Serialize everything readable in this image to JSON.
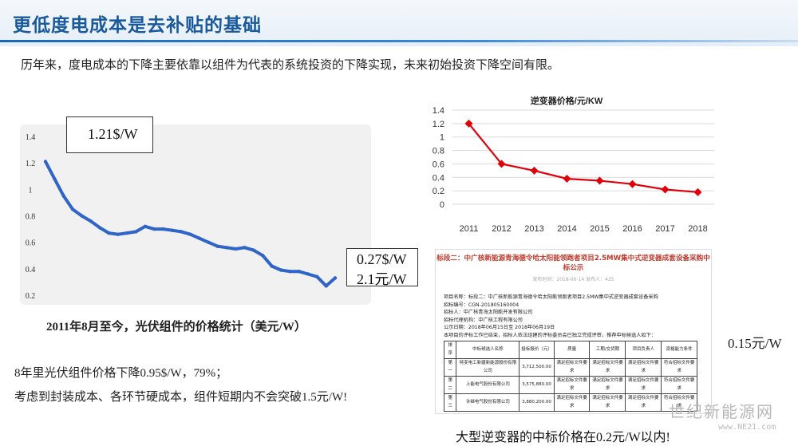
{
  "header": {
    "title": "更低度电成本是去补贴的基础"
  },
  "intro": "历年来，度电成本的下降主要依靠以组件为代表的系统投资的下降实现，未来初始投资下降空间有限。",
  "module_chart": {
    "callout_top": "1.21$/W",
    "callout_bottom_1": "0.27$/W",
    "callout_bottom_2": "2.1元/W",
    "caption": "2011年8月至今，光伏组件的价格统计（美元/W）",
    "y_ticks": [
      "1.4",
      "1.2",
      "1",
      "0.8",
      "0.6",
      "0.4",
      "0.2"
    ]
  },
  "notes": {
    "line1": "8年里光伏组件价格下降0.95$/W，79%；",
    "line2": "考虑到封装成本、各环节硬成本，组件短期内不会突破1.5元/W!"
  },
  "chart_data": [
    {
      "type": "line",
      "title": "",
      "x": [
        1,
        2,
        3,
        4,
        5,
        6,
        7,
        8,
        9,
        10,
        11,
        12,
        13,
        14,
        15,
        16,
        17,
        18,
        19,
        20,
        21,
        22,
        23,
        24,
        25,
        26,
        27,
        28,
        29,
        30,
        31,
        32,
        33
      ],
      "series": [
        {
          "values": [
            1.21,
            1.08,
            0.95,
            0.85,
            0.8,
            0.76,
            0.71,
            0.67,
            0.66,
            0.67,
            0.68,
            0.72,
            0.7,
            0.7,
            0.69,
            0.68,
            0.66,
            0.63,
            0.6,
            0.57,
            0.56,
            0.55,
            0.56,
            0.54,
            0.5,
            0.42,
            0.39,
            0.38,
            0.38,
            0.36,
            0.34,
            0.27,
            0.33
          ]
        }
      ],
      "xlabel": "",
      "ylabel": "",
      "ylim": [
        0.2,
        1.4
      ],
      "yticks": [
        0.2,
        0.4,
        0.6,
        0.8,
        1,
        1.2,
        1.4
      ],
      "grid": false
    },
    {
      "type": "line",
      "title": "逆变器价格/元/KW",
      "categories": [
        "2011",
        "2012",
        "2013",
        "2014",
        "2015",
        "2016",
        "2017",
        "2018"
      ],
      "series": [
        {
          "values": [
            1.2,
            0.6,
            0.5,
            0.38,
            0.35,
            0.3,
            0.22,
            0.18
          ],
          "color": "#e0000a"
        }
      ],
      "yticks": [
        "0",
        "0.2",
        "0.4",
        "0.6",
        "0.8",
        "1",
        "1.2",
        "1.4"
      ],
      "ylim": [
        0,
        1.4
      ],
      "grid": true
    }
  ],
  "doc": {
    "heading": "标段二：中广核新能源青海德令哈太阳能领跑者项目2.5MW集中式逆变器成套设备采购中标公示",
    "sub": "发布时间：2018-06-14  发布人：425",
    "lines": [
      "项目名称：标段二：中广核新能源青海德令哈太阳能领跑者项目2.5MW集中式逆变器成套设备采购",
      "招标编号：CGN-201805160004",
      "招标人：中广核青海太阳能开发有限公司",
      "招标代理机构：中广核工程有限公司",
      "公示日期：2018年06月15日至 2018年06月19日",
      "本项目的评标工作已结束，招标人依法组建的评标委员会已独立完成评审，推荐中标候选人如下："
    ],
    "table_header": [
      "排序",
      "中标候选人名称",
      "投标报价（元）",
      "质量",
      "工期/交货期",
      "项目负责人",
      "资格能力条件"
    ],
    "rows": [
      [
        "第一",
        "特变电工新疆新能源股份有限公司",
        "3,712,500.00",
        "满足招标文件要求",
        "满足招标文件要求",
        "满足招标文件要求",
        "符合招标文件要求"
      ],
      [
        "第二",
        "上能电气股份有限公司",
        "3,575,880.00",
        "满足招标文件要求",
        "满足招标文件要求",
        "满足招标文件要求",
        "符合招标文件要求"
      ],
      [
        "第三",
        "许继电气股份有限公司",
        "3,880,200.00",
        "满足招标文件要求",
        "满足招标文件要求",
        "满足招标文件要求",
        "符合招标文件要求"
      ]
    ]
  },
  "side_price": "0.15元/W",
  "bottom_caption": "大型逆变器的中标价格在0.2元/W以内!",
  "watermark": {
    "text": "世纪新能源网",
    "url": "www.NE21.com"
  },
  "colors": {
    "title": "#1a5a9c",
    "module_line": "#2f64c8",
    "inverter_line": "#e0000a"
  }
}
